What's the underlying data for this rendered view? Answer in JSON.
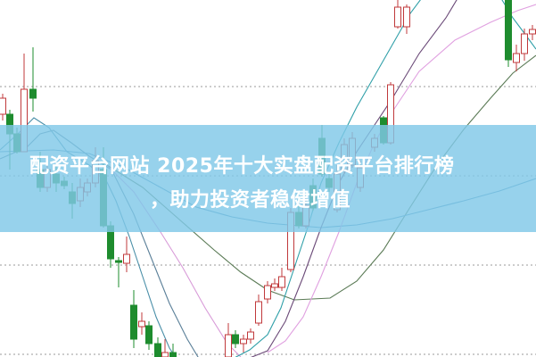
{
  "banner": {
    "title_line1": "配资平台网站 2025年十大实盘配资平台排行榜",
    "title_line2": "，助力投资者稳健增值"
  },
  "colors": {
    "up": "#c0393b",
    "down": "#1e8c2e",
    "banner": "#80c8e8",
    "grid": "#999999"
  }
}
